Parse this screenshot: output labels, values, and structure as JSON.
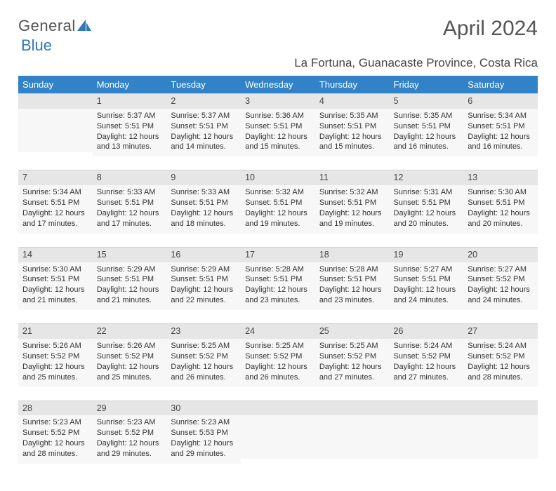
{
  "logo": {
    "text1": "General",
    "text2": "Blue"
  },
  "title": "April 2024",
  "subtitle": "La Fortuna, Guanacaste Province, Costa Rica",
  "colors": {
    "header_bg": "#3182c7",
    "header_text": "#ffffff",
    "daynum_bg": "#e6e6e6",
    "cell_bg": "#f7f7f7",
    "page_bg": "#ffffff",
    "text": "#333333",
    "logo_blue": "#2f78b9"
  },
  "weekdays": [
    "Sunday",
    "Monday",
    "Tuesday",
    "Wednesday",
    "Thursday",
    "Friday",
    "Saturday"
  ],
  "weeks": [
    [
      {
        "day": "",
        "sunrise": "",
        "sunset": "",
        "daylight": ""
      },
      {
        "day": "1",
        "sunrise": "Sunrise: 5:37 AM",
        "sunset": "Sunset: 5:51 PM",
        "daylight": "Daylight: 12 hours and 13 minutes."
      },
      {
        "day": "2",
        "sunrise": "Sunrise: 5:37 AM",
        "sunset": "Sunset: 5:51 PM",
        "daylight": "Daylight: 12 hours and 14 minutes."
      },
      {
        "day": "3",
        "sunrise": "Sunrise: 5:36 AM",
        "sunset": "Sunset: 5:51 PM",
        "daylight": "Daylight: 12 hours and 15 minutes."
      },
      {
        "day": "4",
        "sunrise": "Sunrise: 5:35 AM",
        "sunset": "Sunset: 5:51 PM",
        "daylight": "Daylight: 12 hours and 15 minutes."
      },
      {
        "day": "5",
        "sunrise": "Sunrise: 5:35 AM",
        "sunset": "Sunset: 5:51 PM",
        "daylight": "Daylight: 12 hours and 16 minutes."
      },
      {
        "day": "6",
        "sunrise": "Sunrise: 5:34 AM",
        "sunset": "Sunset: 5:51 PM",
        "daylight": "Daylight: 12 hours and 16 minutes."
      }
    ],
    [
      {
        "day": "7",
        "sunrise": "Sunrise: 5:34 AM",
        "sunset": "Sunset: 5:51 PM",
        "daylight": "Daylight: 12 hours and 17 minutes."
      },
      {
        "day": "8",
        "sunrise": "Sunrise: 5:33 AM",
        "sunset": "Sunset: 5:51 PM",
        "daylight": "Daylight: 12 hours and 17 minutes."
      },
      {
        "day": "9",
        "sunrise": "Sunrise: 5:33 AM",
        "sunset": "Sunset: 5:51 PM",
        "daylight": "Daylight: 12 hours and 18 minutes."
      },
      {
        "day": "10",
        "sunrise": "Sunrise: 5:32 AM",
        "sunset": "Sunset: 5:51 PM",
        "daylight": "Daylight: 12 hours and 19 minutes."
      },
      {
        "day": "11",
        "sunrise": "Sunrise: 5:32 AM",
        "sunset": "Sunset: 5:51 PM",
        "daylight": "Daylight: 12 hours and 19 minutes."
      },
      {
        "day": "12",
        "sunrise": "Sunrise: 5:31 AM",
        "sunset": "Sunset: 5:51 PM",
        "daylight": "Daylight: 12 hours and 20 minutes."
      },
      {
        "day": "13",
        "sunrise": "Sunrise: 5:30 AM",
        "sunset": "Sunset: 5:51 PM",
        "daylight": "Daylight: 12 hours and 20 minutes."
      }
    ],
    [
      {
        "day": "14",
        "sunrise": "Sunrise: 5:30 AM",
        "sunset": "Sunset: 5:51 PM",
        "daylight": "Daylight: 12 hours and 21 minutes."
      },
      {
        "day": "15",
        "sunrise": "Sunrise: 5:29 AM",
        "sunset": "Sunset: 5:51 PM",
        "daylight": "Daylight: 12 hours and 21 minutes."
      },
      {
        "day": "16",
        "sunrise": "Sunrise: 5:29 AM",
        "sunset": "Sunset: 5:51 PM",
        "daylight": "Daylight: 12 hours and 22 minutes."
      },
      {
        "day": "17",
        "sunrise": "Sunrise: 5:28 AM",
        "sunset": "Sunset: 5:51 PM",
        "daylight": "Daylight: 12 hours and 23 minutes."
      },
      {
        "day": "18",
        "sunrise": "Sunrise: 5:28 AM",
        "sunset": "Sunset: 5:51 PM",
        "daylight": "Daylight: 12 hours and 23 minutes."
      },
      {
        "day": "19",
        "sunrise": "Sunrise: 5:27 AM",
        "sunset": "Sunset: 5:51 PM",
        "daylight": "Daylight: 12 hours and 24 minutes."
      },
      {
        "day": "20",
        "sunrise": "Sunrise: 5:27 AM",
        "sunset": "Sunset: 5:52 PM",
        "daylight": "Daylight: 12 hours and 24 minutes."
      }
    ],
    [
      {
        "day": "21",
        "sunrise": "Sunrise: 5:26 AM",
        "sunset": "Sunset: 5:52 PM",
        "daylight": "Daylight: 12 hours and 25 minutes."
      },
      {
        "day": "22",
        "sunrise": "Sunrise: 5:26 AM",
        "sunset": "Sunset: 5:52 PM",
        "daylight": "Daylight: 12 hours and 25 minutes."
      },
      {
        "day": "23",
        "sunrise": "Sunrise: 5:25 AM",
        "sunset": "Sunset: 5:52 PM",
        "daylight": "Daylight: 12 hours and 26 minutes."
      },
      {
        "day": "24",
        "sunrise": "Sunrise: 5:25 AM",
        "sunset": "Sunset: 5:52 PM",
        "daylight": "Daylight: 12 hours and 26 minutes."
      },
      {
        "day": "25",
        "sunrise": "Sunrise: 5:25 AM",
        "sunset": "Sunset: 5:52 PM",
        "daylight": "Daylight: 12 hours and 27 minutes."
      },
      {
        "day": "26",
        "sunrise": "Sunrise: 5:24 AM",
        "sunset": "Sunset: 5:52 PM",
        "daylight": "Daylight: 12 hours and 27 minutes."
      },
      {
        "day": "27",
        "sunrise": "Sunrise: 5:24 AM",
        "sunset": "Sunset: 5:52 PM",
        "daylight": "Daylight: 12 hours and 28 minutes."
      }
    ],
    [
      {
        "day": "28",
        "sunrise": "Sunrise: 5:23 AM",
        "sunset": "Sunset: 5:52 PM",
        "daylight": "Daylight: 12 hours and 28 minutes."
      },
      {
        "day": "29",
        "sunrise": "Sunrise: 5:23 AM",
        "sunset": "Sunset: 5:52 PM",
        "daylight": "Daylight: 12 hours and 29 minutes."
      },
      {
        "day": "30",
        "sunrise": "Sunrise: 5:23 AM",
        "sunset": "Sunset: 5:53 PM",
        "daylight": "Daylight: 12 hours and 29 minutes."
      },
      {
        "day": "",
        "sunrise": "",
        "sunset": "",
        "daylight": ""
      },
      {
        "day": "",
        "sunrise": "",
        "sunset": "",
        "daylight": ""
      },
      {
        "day": "",
        "sunrise": "",
        "sunset": "",
        "daylight": ""
      },
      {
        "day": "",
        "sunrise": "",
        "sunset": "",
        "daylight": ""
      }
    ]
  ]
}
